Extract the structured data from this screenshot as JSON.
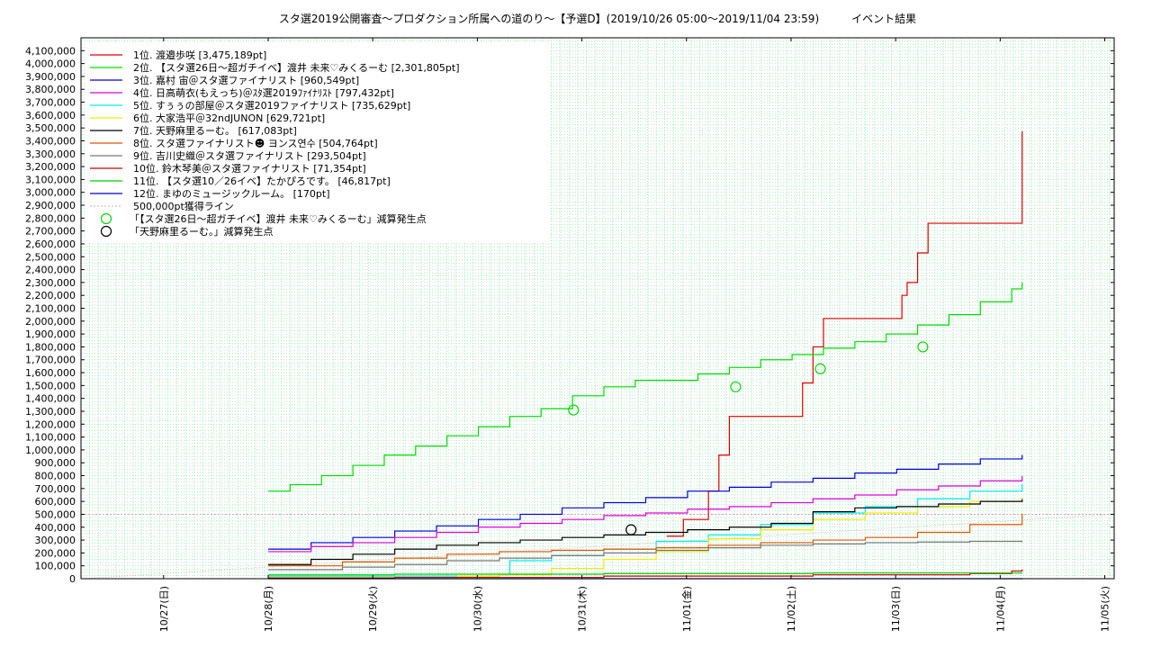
{
  "chart_data": {
    "type": "line",
    "title": "スタ選2019公開審査～プロダクション所属への道のり～【予選D】(2019/10/26 05:00～2019/11/04 23:59)　　　イベント結果",
    "xlabel": "",
    "ylabel": "",
    "xlim": [
      0,
      9
    ],
    "ylim": [
      0,
      4200000
    ],
    "y_ticks": [
      0,
      100000,
      200000,
      300000,
      400000,
      500000,
      600000,
      700000,
      800000,
      900000,
      1000000,
      1100000,
      1200000,
      1300000,
      1400000,
      1500000,
      1600000,
      1700000,
      1800000,
      1900000,
      2000000,
      2100000,
      2200000,
      2300000,
      2400000,
      2500000,
      2600000,
      2700000,
      2800000,
      2900000,
      3000000,
      3100000,
      3200000,
      3300000,
      3400000,
      3500000,
      3600000,
      3700000,
      3800000,
      3900000,
      4000000,
      4100000
    ],
    "y_tick_labels": [
      "0",
      "100,000",
      "200,000",
      "300,000",
      "400,000",
      "500,000",
      "600,000",
      "700,000",
      "800,000",
      "900,000",
      "1,000,000",
      "1,100,000",
      "1,200,000",
      "1,300,000",
      "1,400,000",
      "1,500,000",
      "1,600,000",
      "1,700,000",
      "1,800,000",
      "1,900,000",
      "2,000,000",
      "2,100,000",
      "2,200,000",
      "2,300,000",
      "2,400,000",
      "2,500,000",
      "2,600,000",
      "2,700,000",
      "2,800,000",
      "2,900,000",
      "3,000,000",
      "3,100,000",
      "3,200,000",
      "3,300,000",
      "3,400,000",
      "3,500,000",
      "3,600,000",
      "3,700,000",
      "3,800,000",
      "3,900,000",
      "4,000,000",
      "4,100,000"
    ],
    "x_ticks": [
      0.79,
      1.79,
      2.79,
      3.79,
      4.79,
      5.79,
      6.79,
      7.79,
      8.79
    ],
    "x_tick_labels": [
      "10/27(日)",
      "10/28(月)",
      "10/29(火)",
      "10/30(水)",
      "10/31(木)",
      "11/01(金)",
      "11/02(土)",
      "11/03(日)",
      "11/04(月)",
      "11/05(火)"
    ],
    "x_tick_positions_all": [
      0.79,
      1.79,
      2.79,
      3.79,
      4.79,
      5.79,
      6.79,
      7.79,
      8.79,
      9.79
    ],
    "grid": true,
    "legend_position": "top-left",
    "series": [
      {
        "name": "1位. 渡邉歩咲 [3,475,189pt]",
        "color": "#dd0000",
        "x": [
          5.6,
          5.75,
          5.76,
          6.0,
          6.1,
          6.2,
          6.3,
          6.6,
          6.9,
          7.0,
          7.1,
          7.2,
          7.3,
          7.8,
          7.85,
          7.9,
          8.0,
          8.1,
          8.2,
          8.3,
          8.4,
          8.6,
          9.0
        ],
        "y": [
          330000,
          330000,
          460000,
          680000,
          960000,
          1260000,
          1260000,
          1260000,
          1520000,
          1800000,
          2020000,
          2020000,
          2020000,
          2020000,
          2200000,
          2300000,
          2530000,
          2760000,
          2760000,
          2760000,
          2760000,
          2760000,
          3475189
        ]
      },
      {
        "name": "2位. 【スタ選26日～超ガチイベ】渡井 未来♡みくるーむ [2,301,805pt]",
        "color": "#00dd00",
        "x": [
          1.79,
          2.0,
          2.3,
          2.6,
          2.9,
          3.2,
          3.5,
          3.8,
          4.1,
          4.4,
          4.7,
          5.0,
          5.3,
          5.6,
          5.9,
          6.2,
          6.5,
          6.8,
          7.1,
          7.4,
          7.7,
          8.0,
          8.3,
          8.6,
          8.9,
          9.0
        ],
        "y": [
          680000,
          730000,
          800000,
          880000,
          960000,
          1030000,
          1110000,
          1180000,
          1260000,
          1320000,
          1420000,
          1490000,
          1540000,
          1540000,
          1590000,
          1640000,
          1700000,
          1740000,
          1790000,
          1840000,
          1900000,
          1970000,
          2050000,
          2150000,
          2250000,
          2301805
        ]
      },
      {
        "name": "3位. 嘉村 宙＠スタ選ファイナリスト [960,549pt]",
        "color": "#0000dd",
        "x": [
          1.79,
          2.2,
          2.6,
          3.0,
          3.4,
          3.8,
          4.2,
          4.6,
          5.0,
          5.4,
          5.8,
          6.2,
          6.6,
          7.0,
          7.4,
          7.8,
          8.2,
          8.6,
          9.0
        ],
        "y": [
          230000,
          280000,
          320000,
          370000,
          410000,
          460000,
          500000,
          550000,
          590000,
          630000,
          680000,
          710000,
          750000,
          780000,
          820000,
          850000,
          890000,
          930000,
          960549
        ]
      },
      {
        "name": "4位. 日高萌衣(もえっち)＠ｽﾀ選2019ﾌｧｲﾅﾘｽﾄ [797,432pt]",
        "color": "#dd00dd",
        "x": [
          1.79,
          2.2,
          2.6,
          3.0,
          3.4,
          3.8,
          4.2,
          4.6,
          5.0,
          5.4,
          5.8,
          6.2,
          6.6,
          7.0,
          7.4,
          7.8,
          8.2,
          8.6,
          9.0
        ],
        "y": [
          210000,
          250000,
          280000,
          320000,
          360000,
          400000,
          430000,
          460000,
          490000,
          510000,
          540000,
          560000,
          590000,
          620000,
          650000,
          690000,
          720000,
          760000,
          797432
        ]
      },
      {
        "name": "5位. すぅぅの部屋＠スタ選2019ファイナリスト [735,629pt]",
        "color": "#00eeee",
        "x": [
          1.79,
          3.5,
          4.0,
          4.1,
          4.5,
          5.0,
          5.5,
          6.0,
          6.5,
          7.0,
          7.5,
          8.0,
          8.5,
          9.0
        ],
        "y": [
          20000,
          20000,
          30000,
          140000,
          180000,
          230000,
          290000,
          340000,
          420000,
          510000,
          560000,
          620000,
          680000,
          735629
        ]
      },
      {
        "name": "6位. 大家浩平＠32ndJUNON [629,721pt]",
        "color": "#eeee00",
        "x": [
          1.79,
          3.6,
          4.0,
          4.5,
          5.0,
          5.5,
          6.0,
          6.5,
          7.0,
          7.5,
          8.0,
          8.5,
          9.0
        ],
        "y": [
          10000,
          20000,
          30000,
          80000,
          150000,
          210000,
          310000,
          380000,
          460000,
          510000,
          560000,
          600000,
          629721
        ]
      },
      {
        "name": "7位. 天野麻里るーむ。 [617,083pt]",
        "color": "#000000",
        "x": [
          1.79,
          2.2,
          2.6,
          3.0,
          3.4,
          3.8,
          4.2,
          4.6,
          5.0,
          5.4,
          5.8,
          6.2,
          6.6,
          7.0,
          7.4,
          7.8,
          8.2,
          8.6,
          9.0
        ],
        "y": [
          110000,
          150000,
          190000,
          230000,
          260000,
          280000,
          300000,
          320000,
          340000,
          360000,
          380000,
          400000,
          430000,
          520000,
          550000,
          560000,
          580000,
          600000,
          617083
        ]
      },
      {
        "name": "8位. スタ選ファイナリスト☻ ヨンス연수 [504,764pt]",
        "color": "#dd5500",
        "x": [
          1.79,
          2.5,
          3.0,
          3.5,
          4.0,
          4.5,
          5.0,
          5.5,
          6.0,
          6.5,
          7.0,
          7.5,
          8.0,
          8.5,
          9.0
        ],
        "y": [
          100000,
          130000,
          160000,
          190000,
          210000,
          220000,
          230000,
          240000,
          260000,
          280000,
          300000,
          320000,
          360000,
          420000,
          504764
        ]
      },
      {
        "name": "9位. 吉川史織＠スタ選ファイナリスト [293,504pt]",
        "color": "#777777",
        "x": [
          1.79,
          2.5,
          3.0,
          3.5,
          4.0,
          4.5,
          5.0,
          5.5,
          6.0,
          6.5,
          7.0,
          7.5,
          8.0,
          8.5,
          9.0
        ],
        "y": [
          70000,
          90000,
          110000,
          140000,
          160000,
          180000,
          200000,
          220000,
          240000,
          260000,
          270000,
          280000,
          285000,
          290000,
          293504
        ]
      },
      {
        "name": "10位. 鈴木琴美＠スタ選ファイナリスト [71,354pt]",
        "color": "#cc0000",
        "x": [
          1.79,
          3.0,
          5.0,
          7.0,
          8.5,
          8.9,
          9.0
        ],
        "y": [
          5000,
          10000,
          20000,
          30000,
          40000,
          60000,
          71354
        ]
      },
      {
        "name": "11位. 【スタ選10／26イベ】たかぴろです。 [46,817pt]",
        "color": "#00cc00",
        "x": [
          1.79,
          3.0,
          5.0,
          7.0,
          9.0
        ],
        "y": [
          30000,
          35000,
          40000,
          44000,
          46817
        ]
      },
      {
        "name": "12位. まゆのミュージックルーム。 [170pt]",
        "color": "#0000cc",
        "x": [
          1.79,
          9.0
        ],
        "y": [
          0,
          170
        ]
      }
    ],
    "reference_line": {
      "name": "500,000pt獲得ライン",
      "value": 500000,
      "color": "#d4a8a8"
    },
    "markers": [
      {
        "name": "「【スタ選26日～超ガチイベ】渡井 未来♡みくるーむ」減算発生点",
        "color": "#00dd00",
        "x": [
          4.71,
          6.26,
          7.07,
          8.05
        ],
        "y": [
          1310000,
          1490000,
          1630000,
          1800000
        ]
      },
      {
        "name": "「天野麻里るーむ。」減算発生点",
        "color": "#000000",
        "x": [
          5.26
        ],
        "y": [
          380000
        ]
      }
    ]
  }
}
